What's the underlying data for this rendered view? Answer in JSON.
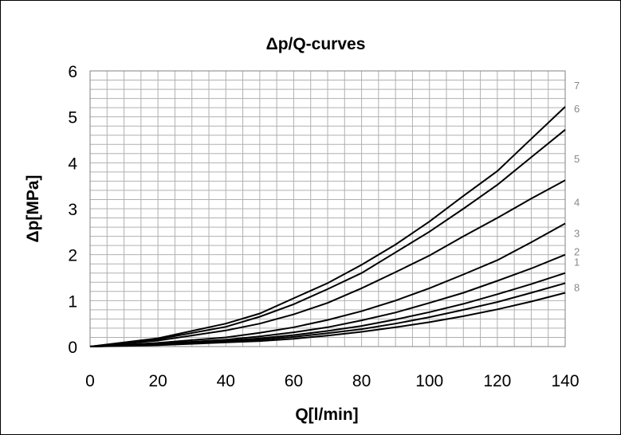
{
  "chart_data": {
    "type": "line",
    "title": "Δp/Q-curves",
    "xlabel": "Q[l/min]",
    "ylabel": "Δp[MPa]",
    "xlim": [
      0,
      140
    ],
    "ylim": [
      0,
      6
    ],
    "grid": true,
    "x": [
      0,
      20,
      40,
      50,
      60,
      70,
      80,
      90,
      100,
      110,
      120,
      130,
      140
    ],
    "x_ticks": [
      "0",
      "20",
      "40",
      "60",
      "80",
      "100",
      "120",
      "140"
    ],
    "y_ticks": [
      "0",
      "1",
      "2",
      "3",
      "4",
      "5",
      "6"
    ],
    "series": [
      {
        "name": "7",
        "values": [
          0,
          0.18,
          0.5,
          0.72,
          1.05,
          1.38,
          1.78,
          2.22,
          2.72,
          3.28,
          3.82,
          4.52,
          5.22
        ]
      },
      {
        "name": "6",
        "values": [
          0,
          0.16,
          0.43,
          0.65,
          0.92,
          1.25,
          1.6,
          2.05,
          2.5,
          3.0,
          3.52,
          4.12,
          4.72
        ]
      },
      {
        "name": "5",
        "values": [
          0,
          0.13,
          0.35,
          0.5,
          0.7,
          0.95,
          1.27,
          1.62,
          1.98,
          2.4,
          2.8,
          3.22,
          3.62
        ]
      },
      {
        "name": "4",
        "values": [
          0,
          0.08,
          0.2,
          0.3,
          0.42,
          0.58,
          0.77,
          1.0,
          1.27,
          1.57,
          1.88,
          2.27,
          2.68
        ]
      },
      {
        "name": "3",
        "values": [
          0,
          0.06,
          0.15,
          0.22,
          0.31,
          0.42,
          0.57,
          0.74,
          0.95,
          1.17,
          1.43,
          1.7,
          2.0
        ]
      },
      {
        "name": "2",
        "values": [
          0,
          0.05,
          0.12,
          0.18,
          0.25,
          0.34,
          0.45,
          0.59,
          0.75,
          0.93,
          1.14,
          1.36,
          1.6
        ]
      },
      {
        "name": "1",
        "values": [
          0,
          0.04,
          0.1,
          0.15,
          0.21,
          0.29,
          0.38,
          0.5,
          0.64,
          0.8,
          0.97,
          1.17,
          1.38
        ]
      },
      {
        "name": "8",
        "values": [
          0,
          0.03,
          0.09,
          0.12,
          0.17,
          0.24,
          0.32,
          0.42,
          0.53,
          0.66,
          0.81,
          0.98,
          1.17
        ]
      }
    ],
    "line_color": "#000000",
    "grid_color": "#b0b0b0",
    "label_color": "#888888"
  }
}
